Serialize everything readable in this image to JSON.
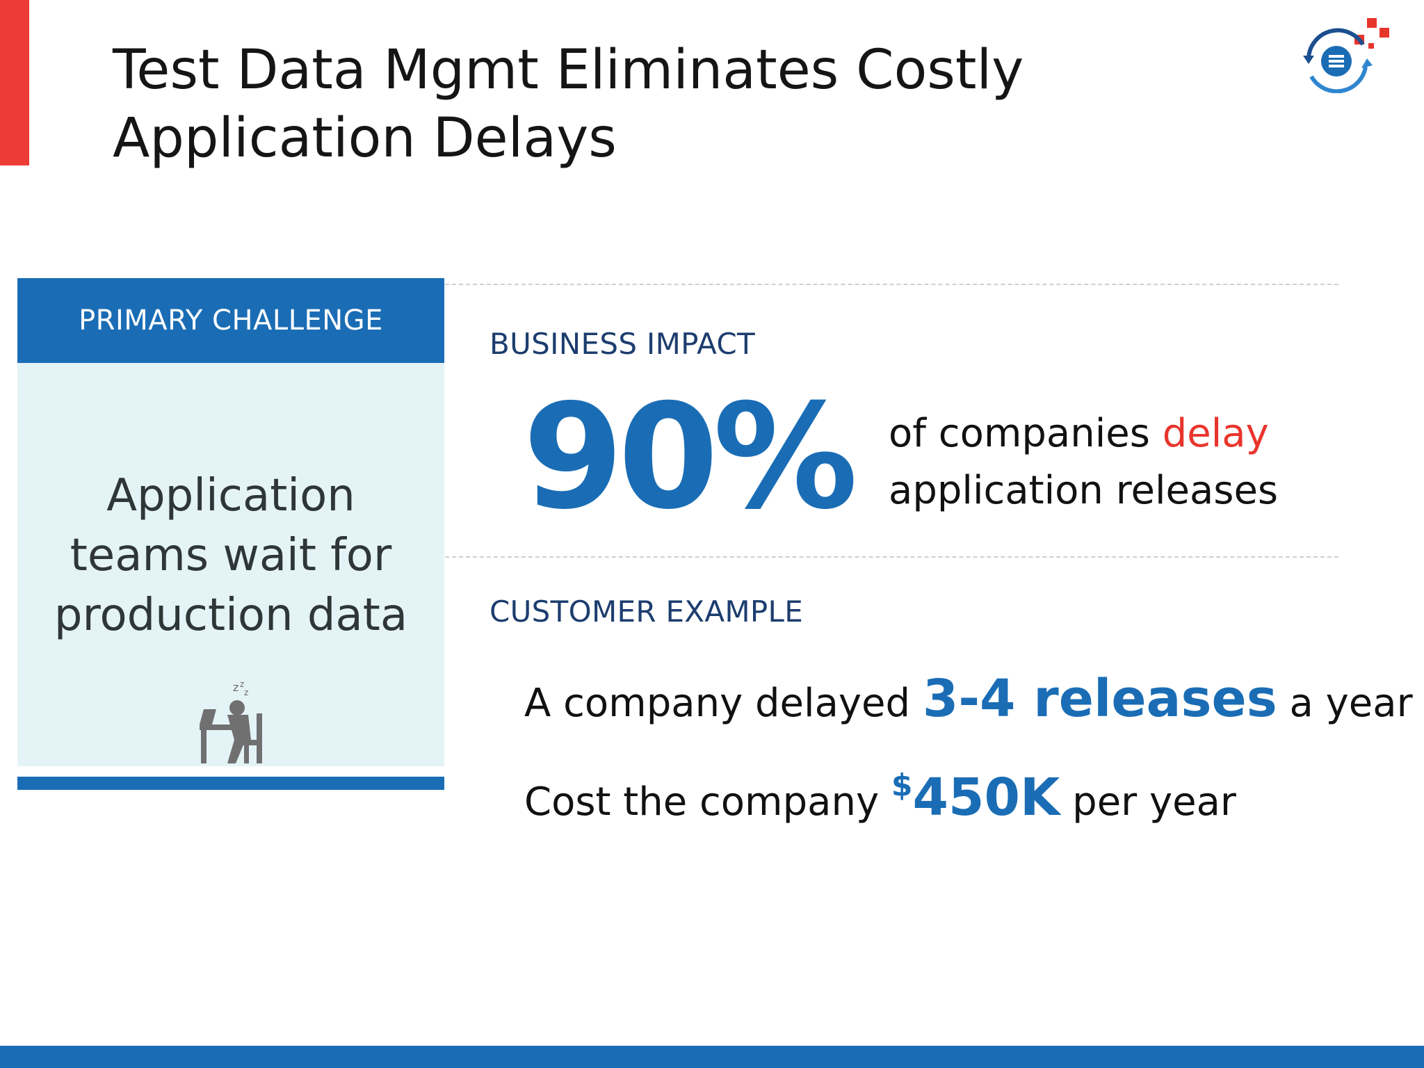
{
  "slide": {
    "title": "Test Data Mgmt Eliminates Costly Application Delays"
  },
  "challenge": {
    "header": "PRIMARY CHALLENGE",
    "text": "Application teams wait for production data"
  },
  "impact": {
    "label": "BUSINESS IMPACT",
    "stat": "90%",
    "desc_before": "of companies ",
    "desc_highlight": "delay",
    "desc_after": " application releases"
  },
  "example": {
    "label": "CUSTOMER EXAMPLE",
    "line1_before": "A company delayed ",
    "line1_highlight": "3-4 releases",
    "line1_after": " a year",
    "line2_before": "Cost the company ",
    "line2_currency": "$",
    "line2_highlight": "450K",
    "line2_after": " per year"
  },
  "colors": {
    "accent_red": "#ef3b36",
    "brand_blue": "#1a6db5",
    "panel_bg": "#e4f3f6",
    "label_navy": "#1c3d6e"
  },
  "icons": {
    "logo": "data-refresh-logo-icon",
    "challenge": "sleeping-worker-icon"
  }
}
